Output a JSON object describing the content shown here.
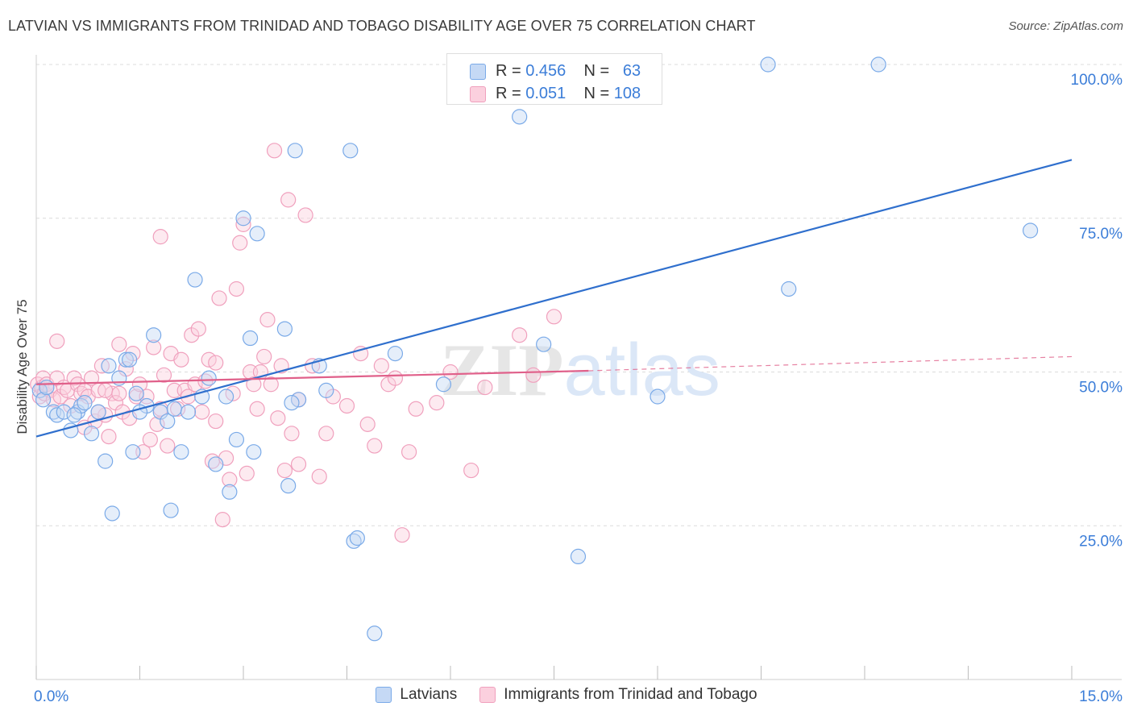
{
  "title": "LATVIAN VS IMMIGRANTS FROM TRINIDAD AND TOBAGO DISABILITY AGE OVER 75 CORRELATION CHART",
  "source": "Source: ZipAtlas.com",
  "watermark": "ZIPatlas",
  "legend_top": [
    {
      "r_label": "R =",
      "r_value": "0.456",
      "n_label": "N =",
      "n_value": "63"
    },
    {
      "r_label": "R =",
      "r_value": "0.051",
      "n_label": "N =",
      "n_value": "108"
    }
  ],
  "chart_data": {
    "type": "scatter",
    "xlabel": "",
    "ylabel": "Disability Age Over 75",
    "xlim": [
      0,
      15
    ],
    "ylim": [
      0,
      100
    ],
    "x_tick_labels": [
      "0.0%",
      "15.0%"
    ],
    "y_tick_labels": [
      "25.0%",
      "50.0%",
      "75.0%",
      "100.0%"
    ],
    "y_ticks": [
      25,
      50,
      75,
      100
    ],
    "grid": true,
    "legend_position": "bottom-center",
    "series": [
      {
        "name": "Latvians",
        "color": "#7aaae8",
        "trend_color": "#2f6fcd",
        "trend": {
          "x0": 0,
          "y0": 39.5,
          "x1": 15,
          "y1": 84.5
        },
        "x": [
          0.05,
          0.1,
          0.15,
          0.25,
          0.3,
          0.4,
          0.5,
          0.6,
          0.65,
          0.7,
          0.8,
          0.9,
          1.0,
          1.1,
          1.2,
          1.3,
          1.4,
          1.45,
          1.6,
          1.7,
          1.8,
          1.9,
          1.95,
          2.0,
          2.1,
          2.2,
          2.3,
          2.4,
          2.5,
          2.6,
          2.8,
          2.9,
          3.0,
          3.1,
          3.15,
          3.2,
          3.6,
          3.65,
          3.75,
          3.8,
          4.1,
          4.2,
          4.55,
          4.6,
          4.65,
          4.9,
          5.2,
          5.9,
          6.25,
          7.0,
          7.35,
          7.85,
          9.0,
          10.6,
          10.9,
          12.2,
          14.4,
          1.35,
          3.7,
          1.05,
          2.75,
          0.55,
          1.5
        ],
        "y": [
          47,
          45.5,
          47.5,
          43.5,
          43,
          43.5,
          40.5,
          43.5,
          44.5,
          45,
          40,
          43.5,
          35.5,
          27,
          49,
          52,
          37,
          46.5,
          44.5,
          56,
          43.5,
          42,
          27.5,
          44,
          37,
          43.5,
          65,
          46,
          49,
          35,
          30.5,
          39,
          75,
          55.5,
          37,
          72.5,
          57,
          31.5,
          86,
          45.5,
          51,
          47,
          86,
          22.5,
          23,
          7.5,
          53,
          48,
          100,
          91.5,
          54.5,
          20,
          46,
          100,
          63.5,
          100,
          73,
          52,
          45,
          51,
          46,
          43,
          43.5
        ]
      },
      {
        "name": "Immigrants from Trinidad and Tobago",
        "color": "#f0a0bd",
        "trend_color": "#e0608a",
        "trend": {
          "x0": 0,
          "y0": 48,
          "x1": 8,
          "y1": 50.2
        },
        "trend_dashed": {
          "x0": 8,
          "y0": 50.2,
          "x1": 15,
          "y1": 52.5
        },
        "x": [
          0.02,
          0.05,
          0.08,
          0.1,
          0.12,
          0.15,
          0.2,
          0.25,
          0.3,
          0.35,
          0.4,
          0.45,
          0.5,
          0.55,
          0.6,
          0.65,
          0.7,
          0.75,
          0.8,
          0.85,
          0.9,
          0.95,
          1.0,
          1.05,
          1.1,
          1.15,
          1.2,
          1.25,
          1.3,
          1.35,
          1.4,
          1.45,
          1.5,
          1.55,
          1.6,
          1.65,
          1.7,
          1.75,
          1.8,
          1.85,
          1.9,
          1.95,
          2.0,
          2.05,
          2.1,
          2.15,
          2.2,
          2.25,
          2.3,
          2.35,
          2.4,
          2.45,
          2.5,
          2.55,
          2.6,
          2.65,
          2.7,
          2.75,
          2.8,
          2.85,
          2.9,
          2.95,
          3.0,
          3.05,
          3.1,
          3.15,
          3.2,
          3.25,
          3.3,
          3.35,
          3.4,
          3.45,
          3.5,
          3.55,
          3.6,
          3.65,
          3.7,
          3.8,
          3.9,
          4.0,
          4.1,
          4.2,
          4.3,
          4.5,
          4.7,
          4.8,
          4.9,
          5.0,
          5.1,
          5.2,
          5.3,
          5.4,
          5.5,
          5.8,
          6.0,
          6.3,
          6.5,
          7.0,
          7.2,
          7.5,
          1.0,
          0.7,
          0.3,
          0.9,
          1.2,
          1.8,
          2.6,
          3.8
        ],
        "y": [
          48,
          46,
          47.5,
          49,
          46.5,
          48,
          47,
          45.5,
          49,
          46,
          47.5,
          47,
          44.5,
          49,
          48,
          46.5,
          47,
          46,
          49,
          42,
          47,
          51,
          43,
          39.5,
          46.5,
          45,
          54.5,
          43.5,
          50.5,
          42.5,
          53,
          46,
          48,
          37,
          46,
          39,
          54,
          41.5,
          72,
          49.5,
          38,
          53,
          47,
          44,
          52,
          47,
          46,
          56,
          48,
          57,
          43.5,
          48.5,
          52,
          35.5,
          42,
          62,
          26,
          36,
          32.5,
          46.5,
          63.5,
          71,
          74,
          33.5,
          50,
          48,
          44,
          50,
          52.5,
          58.5,
          48,
          86,
          42.5,
          51,
          34,
          78,
          40,
          35,
          75.5,
          51,
          33,
          40,
          46,
          44.5,
          53,
          41.5,
          38,
          51,
          48,
          49,
          23.5,
          37,
          44,
          45,
          50,
          34,
          47.5,
          56,
          49.5,
          59,
          47,
          41,
          55,
          43.5,
          46.5,
          44,
          51.5,
          45.5
        ]
      }
    ]
  }
}
